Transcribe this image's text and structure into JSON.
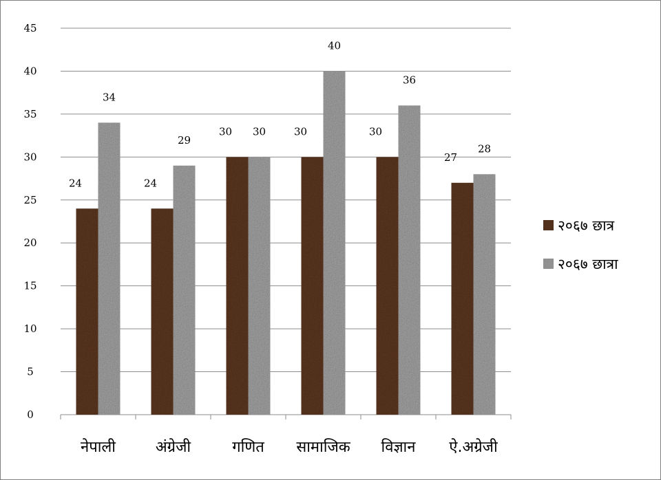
{
  "chart_data": {
    "type": "bar",
    "categories": [
      "नेपाली",
      "अंग्रेजी",
      "गणित",
      "सामाजिक",
      "विज्ञान",
      "ऐ.अग्रेजी"
    ],
    "series": [
      {
        "name": "२०६७ छात्र",
        "values": [
          24,
          24,
          30,
          30,
          30,
          27
        ],
        "color": "#5a3520"
      },
      {
        "name": "२०६७ छात्रा",
        "values": [
          34,
          29,
          30,
          40,
          36,
          28
        ],
        "color": "#a8a8a8"
      }
    ],
    "ylim": [
      0,
      45
    ],
    "yticks": [
      "0",
      "5",
      "10",
      "15",
      "20",
      "25",
      "30",
      "35",
      "40",
      "45"
    ],
    "grid": true,
    "legend_position": "right"
  }
}
